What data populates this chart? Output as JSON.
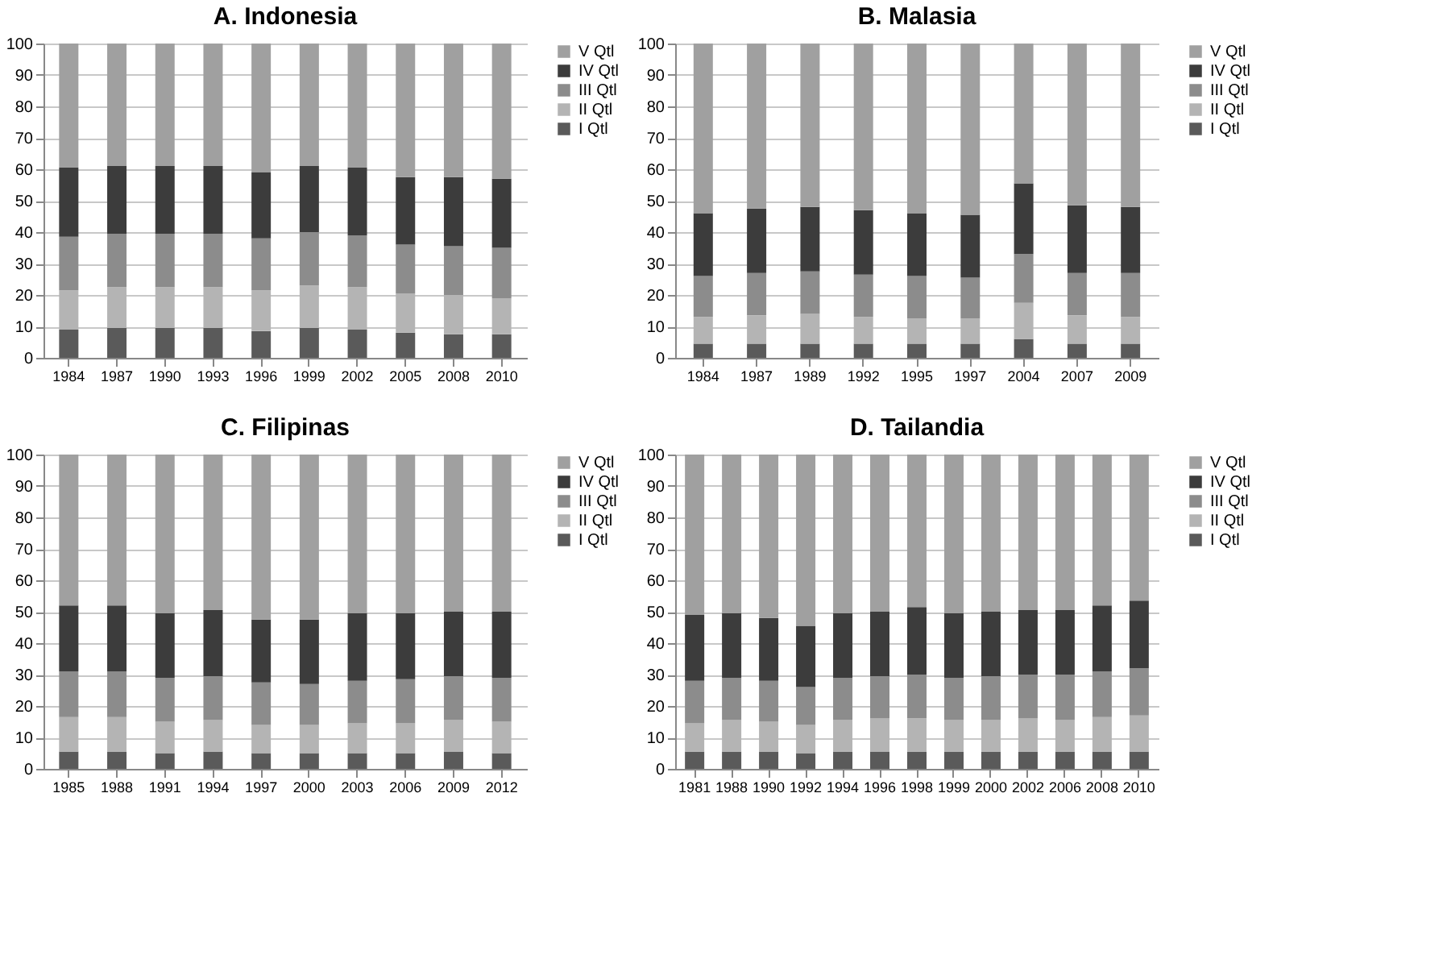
{
  "chart_data": [
    {
      "type": "bar",
      "title": "A. Indonesia",
      "stacked": true,
      "ylim": [
        0,
        100
      ],
      "yticks": [
        0,
        10,
        20,
        30,
        40,
        50,
        60,
        70,
        80,
        90,
        100
      ],
      "grid": "y",
      "legend": "right",
      "categories": [
        "1984",
        "1987",
        "1990",
        "1993",
        "1996",
        "1999",
        "2002",
        "2005",
        "2008",
        "2010"
      ],
      "series": [
        {
          "name": "I Qtl",
          "color": "#5a5a5a",
          "values": [
            9,
            9.5,
            9.5,
            9.5,
            8.5,
            9.5,
            9,
            8,
            7.5,
            7.5
          ]
        },
        {
          "name": "II Qtl",
          "color": "#b4b4b4",
          "values": [
            12.5,
            13,
            13,
            13,
            13,
            13.5,
            13.5,
            12.5,
            12.5,
            11.5
          ]
        },
        {
          "name": "III Qtl",
          "color": "#8c8c8c",
          "values": [
            17,
            17,
            17,
            17,
            16.5,
            17,
            16.5,
            15.5,
            15.5,
            16
          ]
        },
        {
          "name": "IV Qtl",
          "color": "#3c3c3c",
          "values": [
            22,
            21.5,
            21.5,
            21.5,
            21,
            21,
            21.5,
            21.5,
            22,
            22
          ]
        },
        {
          "name": "V Qtl",
          "color": "#a0a0a0",
          "values": [
            39.5,
            39,
            39,
            39,
            41,
            39,
            39.5,
            42.5,
            42.5,
            43
          ]
        }
      ]
    },
    {
      "type": "bar",
      "title": "B. Malasia",
      "stacked": true,
      "ylim": [
        0,
        100
      ],
      "yticks": [
        0,
        10,
        20,
        30,
        40,
        50,
        60,
        70,
        80,
        90,
        100
      ],
      "grid": "y",
      "legend": "right",
      "categories": [
        "1984",
        "1987",
        "1989",
        "1992",
        "1995",
        "1997",
        "2004",
        "2007",
        "2009"
      ],
      "series": [
        {
          "name": "I Qtl",
          "color": "#5a5a5a",
          "values": [
            4.5,
            4.5,
            4.5,
            4.5,
            4.5,
            4.5,
            6,
            4.5,
            4.5
          ]
        },
        {
          "name": "II Qtl",
          "color": "#b4b4b4",
          "values": [
            8.5,
            9,
            9.5,
            8.5,
            8,
            8,
            11.5,
            9,
            8.5
          ]
        },
        {
          "name": "III Qtl",
          "color": "#8c8c8c",
          "values": [
            13,
            13.5,
            13.5,
            13.5,
            13.5,
            13,
            15.5,
            13.5,
            14
          ]
        },
        {
          "name": "IV Qtl",
          "color": "#3c3c3c",
          "values": [
            20,
            20.5,
            20.5,
            20.5,
            20,
            20,
            22.5,
            21.5,
            21
          ]
        },
        {
          "name": "V Qtl",
          "color": "#a0a0a0",
          "values": [
            54,
            52.5,
            52,
            53,
            54,
            54.5,
            44.5,
            51.5,
            52
          ]
        }
      ]
    },
    {
      "type": "bar",
      "title": "C. Filipinas",
      "stacked": true,
      "ylim": [
        0,
        100
      ],
      "yticks": [
        0,
        10,
        20,
        30,
        40,
        50,
        60,
        70,
        80,
        90,
        100
      ],
      "grid": "y",
      "legend": "right",
      "categories": [
        "1985",
        "1988",
        "1991",
        "1994",
        "1997",
        "2000",
        "2003",
        "2006",
        "2009",
        "2012"
      ],
      "series": [
        {
          "name": "I Qtl",
          "color": "#5a5a5a",
          "values": [
            5.5,
            5.5,
            5,
            5.5,
            5,
            5,
            5,
            5,
            5.5,
            5
          ]
        },
        {
          "name": "II Qtl",
          "color": "#b4b4b4",
          "values": [
            11,
            11,
            10,
            10,
            9,
            9,
            9.5,
            9.5,
            10,
            10
          ]
        },
        {
          "name": "III Qtl",
          "color": "#8c8c8c",
          "values": [
            14.5,
            14.5,
            14,
            14,
            13.5,
            13,
            13.5,
            14,
            14,
            14
          ]
        },
        {
          "name": "IV Qtl",
          "color": "#3c3c3c",
          "values": [
            21,
            21,
            20.5,
            21,
            20,
            20.5,
            21.5,
            21,
            20.5,
            21
          ]
        },
        {
          "name": "V Qtl",
          "color": "#a0a0a0",
          "values": [
            48,
            48,
            50.5,
            49.5,
            52.5,
            52.5,
            50.5,
            50.5,
            50,
            50
          ]
        }
      ]
    },
    {
      "type": "bar",
      "title": "D. Tailandia",
      "stacked": true,
      "ylim": [
        0,
        100
      ],
      "yticks": [
        0,
        10,
        20,
        30,
        40,
        50,
        60,
        70,
        80,
        90,
        100
      ],
      "grid": "y",
      "legend": "right",
      "categories": [
        "1981",
        "1988",
        "1990",
        "1992",
        "1994",
        "1996",
        "1998",
        "1999",
        "2000",
        "2002",
        "2006",
        "2008",
        "2010"
      ],
      "series": [
        {
          "name": "I Qtl",
          "color": "#5a5a5a",
          "values": [
            5.5,
            5.5,
            5.5,
            5,
            5.5,
            5.5,
            5.5,
            5.5,
            5.5,
            5.5,
            5.5,
            5.5,
            5.5
          ]
        },
        {
          "name": "II Qtl",
          "color": "#b4b4b4",
          "values": [
            9,
            10,
            9.5,
            9,
            10,
            10.5,
            10.5,
            10,
            10,
            10.5,
            10,
            11,
            11.5
          ]
        },
        {
          "name": "III Qtl",
          "color": "#8c8c8c",
          "values": [
            13.5,
            13.5,
            13,
            12,
            13.5,
            13.5,
            14,
            13.5,
            14,
            14,
            14.5,
            14.5,
            15
          ]
        },
        {
          "name": "IV Qtl",
          "color": "#3c3c3c",
          "values": [
            21,
            20.5,
            20,
            19.5,
            20.5,
            20.5,
            21.5,
            20.5,
            20.5,
            20.5,
            20.5,
            21,
            21.5
          ]
        },
        {
          "name": "V Qtl",
          "color": "#a0a0a0",
          "values": [
            51,
            50.5,
            52,
            54.5,
            50.5,
            50,
            48.5,
            50.5,
            50,
            49.5,
            49.5,
            48,
            46.5
          ]
        }
      ]
    }
  ]
}
